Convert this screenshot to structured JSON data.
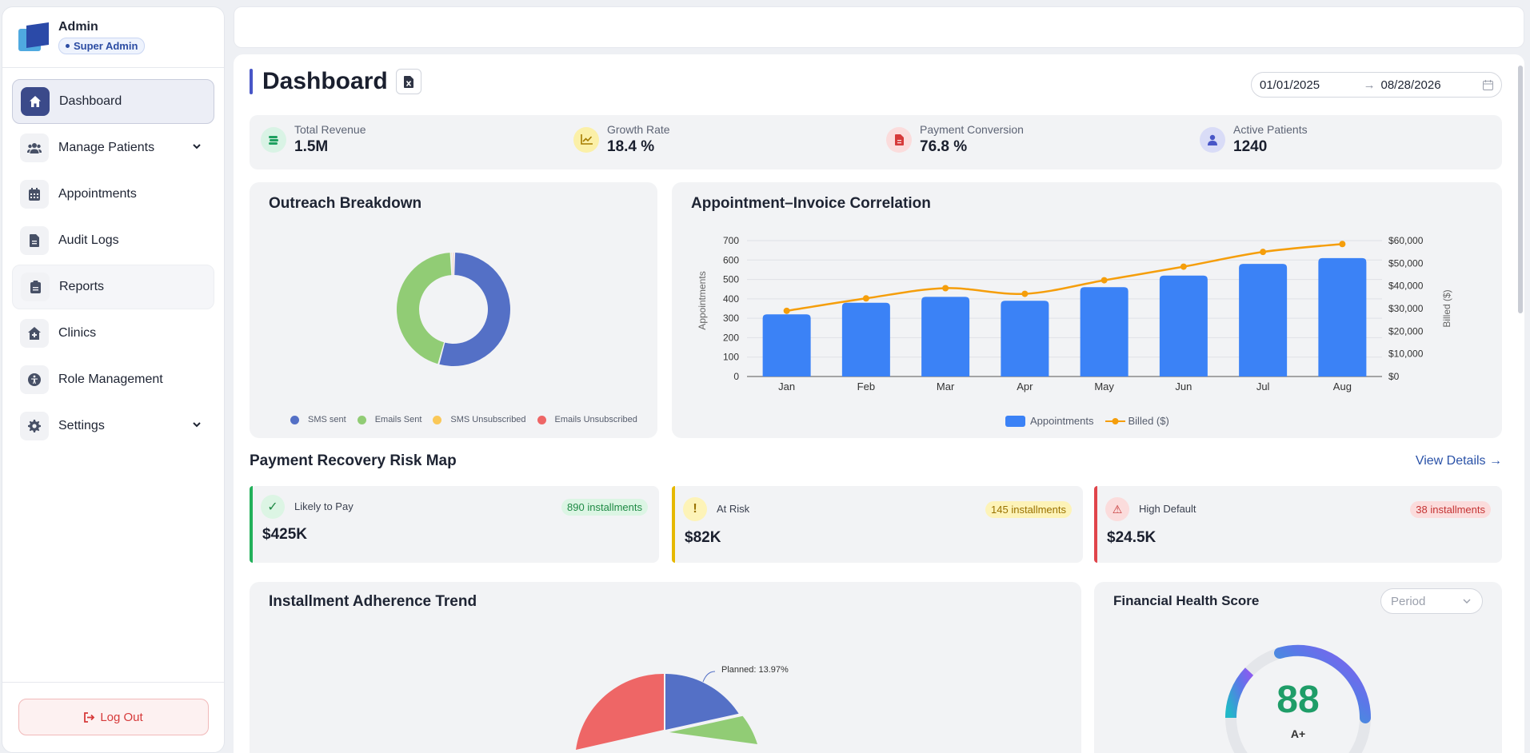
{
  "profile": {
    "name": "Admin",
    "role": "Super Admin"
  },
  "nav": [
    {
      "label": "Dashboard",
      "icon": "home-icon"
    },
    {
      "label": "Manage Patients",
      "icon": "users-icon"
    },
    {
      "label": "Appointments",
      "icon": "calendar-icon"
    },
    {
      "label": "Audit Logs",
      "icon": "file-icon"
    },
    {
      "label": "Reports",
      "icon": "clipboard-icon"
    },
    {
      "label": "Clinics",
      "icon": "clinic-icon"
    },
    {
      "label": "Role Management",
      "icon": "accessibility-icon"
    },
    {
      "label": "Settings",
      "icon": "gear-icon"
    }
  ],
  "logout_label": "Log Out",
  "page": {
    "title": "Dashboard"
  },
  "date_range": {
    "start": "01/01/2025",
    "end": "08/28/2026",
    "sep": "→"
  },
  "kpis": [
    {
      "label": "Total Revenue",
      "value": "1.5M",
      "icon": "money-icon",
      "color": "#1fa060",
      "bg": "#d9f3e5"
    },
    {
      "label": "Growth Rate",
      "value": "18.4 %",
      "icon": "trend-icon",
      "color": "#a67c00",
      "bg": "#fbf0a8"
    },
    {
      "label": "Payment Conversion",
      "value": "76.8 %",
      "icon": "invoice-icon",
      "color": "#d63a3a",
      "bg": "#fbdcdc"
    },
    {
      "label": "Active Patients",
      "value": "1240",
      "icon": "user-icon",
      "color": "#4856c7",
      "bg": "#d9dcf7"
    }
  ],
  "outreach": {
    "title": "Outreach Breakdown",
    "legend": [
      {
        "name": "SMS sent",
        "color": "#5470c6"
      },
      {
        "name": "Emails Sent",
        "color": "#91cc75"
      },
      {
        "name": "SMS Unsubscribed",
        "color": "#fac858"
      },
      {
        "name": "Emails Unsubscribed",
        "color": "#ee6666"
      }
    ]
  },
  "correlation": {
    "title": "Appointment–Invoice Correlation",
    "legend": {
      "bar": "Appointments",
      "line": "Billed ($)"
    }
  },
  "risk_map": {
    "title": "Payment Recovery Risk Map",
    "view_details": "View Details →",
    "cards": [
      {
        "label": "Likely to Pay",
        "pill": "890 installments",
        "value": "$425K",
        "mark": "✓",
        "color": "#22b05a",
        "text": "#1f8a45",
        "bg": "#dcf5e4"
      },
      {
        "label": "At Risk",
        "pill": "145 installments",
        "value": "$82K",
        "mark": "!",
        "color": "#e6b800",
        "text": "#9a7200",
        "bg": "#fdf3b8"
      },
      {
        "label": "High Default",
        "pill": "38 installments",
        "value": "$24.5K",
        "mark": "⚠",
        "color": "#e0454b",
        "text": "#c43333",
        "bg": "#fbdcdc"
      }
    ]
  },
  "adherence": {
    "title": "Installment Adherence Trend",
    "slice_label": "Planned: 13.97%"
  },
  "health": {
    "title": "Financial Health Score",
    "period_placeholder": "Period",
    "score": "88",
    "grade": "A+"
  },
  "chart_data": [
    {
      "type": "pie",
      "title": "Outreach Breakdown",
      "categories": [
        "SMS sent",
        "Emails Sent",
        "SMS Unsubscribed",
        "Emails Unsubscribed"
      ],
      "values": [
        54,
        45,
        0.5,
        0.5
      ],
      "donut": true,
      "legend": "bottom"
    },
    {
      "type": "bar",
      "title": "Appointment–Invoice Correlation",
      "categories": [
        "Jan",
        "Feb",
        "Mar",
        "Apr",
        "May",
        "Jun",
        "Jul",
        "Aug"
      ],
      "series": [
        {
          "name": "Appointments",
          "type": "bar",
          "axis": "left",
          "color": "#3b82f6",
          "values": [
            320,
            380,
            410,
            390,
            460,
            520,
            580,
            610
          ]
        },
        {
          "name": "Billed ($)",
          "type": "line",
          "axis": "right",
          "color": "#f59e0b",
          "values": [
            29000,
            34500,
            39000,
            36500,
            42500,
            48500,
            55000,
            58500
          ]
        }
      ],
      "ylabel": "Appointments",
      "y2label": "Billed ($)",
      "ylim": [
        0,
        700
      ],
      "y2lim": [
        0,
        60000
      ],
      "yticks": [
        "0",
        "100",
        "200",
        "300",
        "400",
        "500",
        "600",
        "700"
      ],
      "y2ticks": [
        "$0",
        "$10,000",
        "$20,000",
        "$30,000",
        "$40,000",
        "$50,000",
        "$60,000"
      ],
      "grid": true,
      "legend": "bottom"
    },
    {
      "type": "pie",
      "title": "Installment Adherence Trend",
      "annotations": [
        "Planned: 13.97%"
      ]
    }
  ]
}
